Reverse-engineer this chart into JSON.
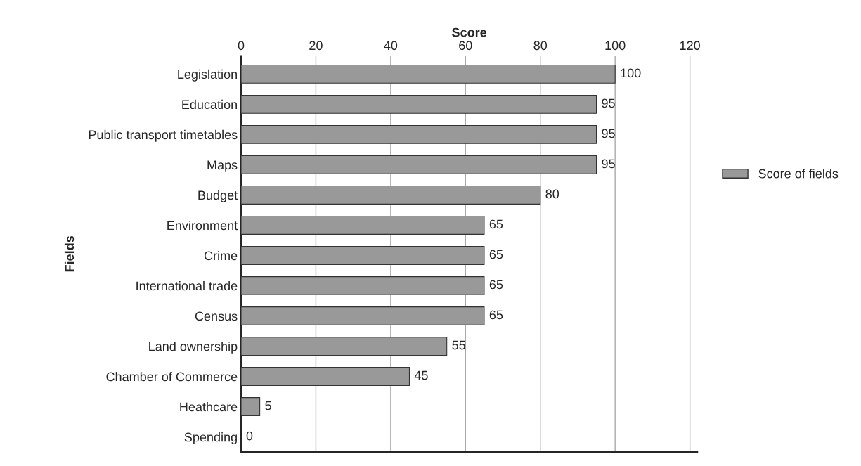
{
  "chart_data": {
    "type": "bar",
    "orientation": "horizontal",
    "xlabel": "Score",
    "ylabel": "Fields",
    "categories": [
      "Legislation",
      "Education",
      "Public transport timetables",
      "Maps",
      "Budget",
      "Environment",
      "Crime",
      "International trade",
      "Census",
      "Land ownership",
      "Chamber of Commerce",
      "Heathcare",
      "Spending"
    ],
    "series": [
      {
        "name": "Score of fields",
        "color": "#999999",
        "values": [
          100,
          95,
          95,
          95,
          80,
          65,
          65,
          65,
          65,
          55,
          45,
          5,
          0
        ]
      }
    ],
    "xlim": [
      0,
      122
    ],
    "xticks": [
      0,
      20,
      40,
      60,
      80,
      100,
      120
    ],
    "grid": "x",
    "legend": "right",
    "data_labels": true
  }
}
